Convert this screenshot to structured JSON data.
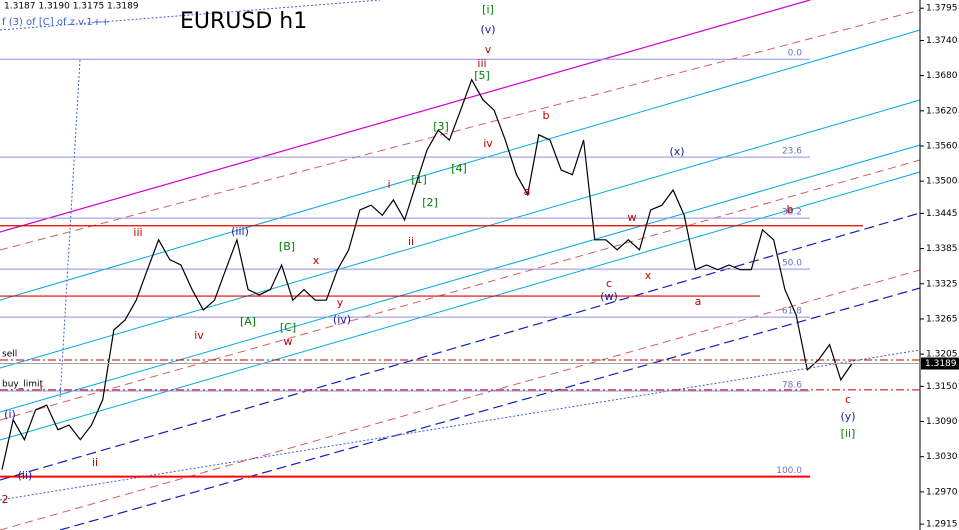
{
  "chart_data": {
    "type": "line",
    "title": "EURUSD h1",
    "ohlc_text": "1.3187 1.3190 1.3175 1.3189",
    "indicator_text": "f (3) of [C] of z v.1++",
    "current_price": {
      "value": 1.3189,
      "label": "1.3189"
    },
    "series": [
      {
        "color": "#000000",
        "values": [
          1.3008,
          1.3093,
          1.3059,
          1.311,
          1.3118,
          1.3076,
          1.3084,
          1.3059,
          1.3084,
          1.3127,
          1.3246,
          1.3263,
          1.3297,
          1.3349,
          1.34,
          1.3366,
          1.3357,
          1.3315,
          1.328,
          1.3297,
          1.3349,
          1.34,
          1.3315,
          1.3306,
          1.3315,
          1.3357,
          1.3297,
          1.3315,
          1.3297,
          1.3297,
          1.3349,
          1.3383,
          1.3451,
          1.3459,
          1.3442,
          1.3468,
          1.3434,
          1.3494,
          1.3553,
          1.3587,
          1.357,
          1.3621,
          1.3673,
          1.3639,
          1.3621,
          1.357,
          1.3511,
          1.3477,
          1.3579,
          1.357,
          1.3519,
          1.3511,
          1.357,
          1.34,
          1.34,
          1.3383,
          1.34,
          1.3383,
          1.3451,
          1.3459,
          1.3485,
          1.3442,
          1.3349,
          1.3357,
          1.3349,
          1.3357,
          1.3349,
          1.3349,
          1.3417,
          1.34,
          1.3315,
          1.3272,
          1.3178,
          1.3195,
          1.3221,
          1.3161,
          1.3189
        ]
      }
    ],
    "ylim": [
      1.2905,
      1.3809
    ],
    "yticks": [
      1.3795,
      {
        "value": 1.374,
        "label": "1.3740"
      },
      {
        "value": 1.368,
        "label": "1.3680"
      },
      {
        "value": 1.362,
        "label": "1.3620"
      },
      {
        "value": 1.356,
        "label": "1.3560"
      },
      {
        "value": 1.35,
        "label": "1.3500"
      },
      1.3445,
      1.3385,
      1.3325,
      1.3265,
      1.3205,
      {
        "value": 1.315,
        "label": "1.3150"
      },
      {
        "value": 1.309,
        "label": "1.3090"
      },
      {
        "value": 1.303,
        "label": "1.3030"
      },
      {
        "value": 1.297,
        "label": "1.2970"
      },
      1.2915
    ],
    "fib_levels": [
      {
        "label": "0.0",
        "value": 1.3708
      },
      {
        "label": "23.6",
        "value": 1.3541
      },
      {
        "label": "38.2",
        "value": 1.3437
      },
      {
        "label": "50.0",
        "value": 1.335
      },
      {
        "label": "61.8",
        "value": 1.3268
      },
      {
        "label": "78.6",
        "value": 1.3142
      },
      {
        "label": "100.0",
        "value": 1.2996
      }
    ],
    "orders": [
      {
        "label": "sell",
        "value": 1.3195,
        "color": "#c00000"
      },
      {
        "label": "buy_limit",
        "value": 1.3144,
        "color": "#c00000"
      }
    ],
    "levels": [
      {
        "value": 1.3304,
        "color": "#e00000"
      },
      {
        "value": 1.3424,
        "color": "#e00000"
      },
      {
        "value": 1.2996,
        "color": "#ff0000"
      }
    ],
    "annotations": [
      {
        "text": "[i]",
        "color": "#008000"
      },
      {
        "text": "(v)",
        "color": "#1a1aa0"
      },
      {
        "text": "v",
        "color": "#c00000"
      },
      {
        "text": "iii",
        "color": "#c00000"
      },
      {
        "text": "[5]",
        "color": "#008000"
      },
      {
        "text": "iv",
        "color": "#c00000"
      },
      {
        "text": "b",
        "color": "#c00000"
      },
      {
        "text": "a",
        "color": "#c00000"
      },
      {
        "text": "(x)",
        "color": "#1a1aa0"
      },
      {
        "text": "w",
        "color": "#c00000"
      },
      {
        "text": "x",
        "color": "#c00000"
      },
      {
        "text": "c",
        "color": "#c00000"
      },
      {
        "text": "(w)",
        "color": "#1a1aa0"
      },
      {
        "text": "a",
        "color": "#c00000"
      },
      {
        "text": "b",
        "color": "#c00000"
      },
      {
        "text": "c",
        "color": "#c00000"
      },
      {
        "text": "(y)",
        "color": "#1a1aa0"
      },
      {
        "text": "[ii]",
        "color": "#008000"
      },
      {
        "text": "[3]",
        "color": "#008000"
      },
      {
        "text": "[4]",
        "color": "#008000"
      },
      {
        "text": "[1]",
        "color": "#008000"
      },
      {
        "text": "[2]",
        "color": "#008000"
      },
      {
        "text": "i",
        "color": "#c00000"
      },
      {
        "text": "ii",
        "color": "#c00000"
      },
      {
        "text": "iii",
        "color": "#c00000"
      },
      {
        "text": "(iii)",
        "color": "#1a1aa0"
      },
      {
        "text": "[B]",
        "color": "#008000"
      },
      {
        "text": "x",
        "color": "#c00000"
      },
      {
        "text": "y",
        "color": "#c00000"
      },
      {
        "text": "(iv)",
        "color": "#1a1aa0"
      },
      {
        "text": "[A]",
        "color": "#008000"
      },
      {
        "text": "[C]",
        "color": "#008000"
      },
      {
        "text": "w",
        "color": "#c00000"
      },
      {
        "text": "iv",
        "color": "#c00000"
      },
      {
        "text": "i",
        "color": "#c00000"
      },
      {
        "text": "(i)",
        "color": "#1a1aa0"
      },
      {
        "text": "(ii)",
        "color": "#1a1aa0"
      },
      {
        "text": "ii",
        "color": "#c00000"
      },
      {
        "text": "2",
        "color": "#c00000"
      }
    ]
  }
}
